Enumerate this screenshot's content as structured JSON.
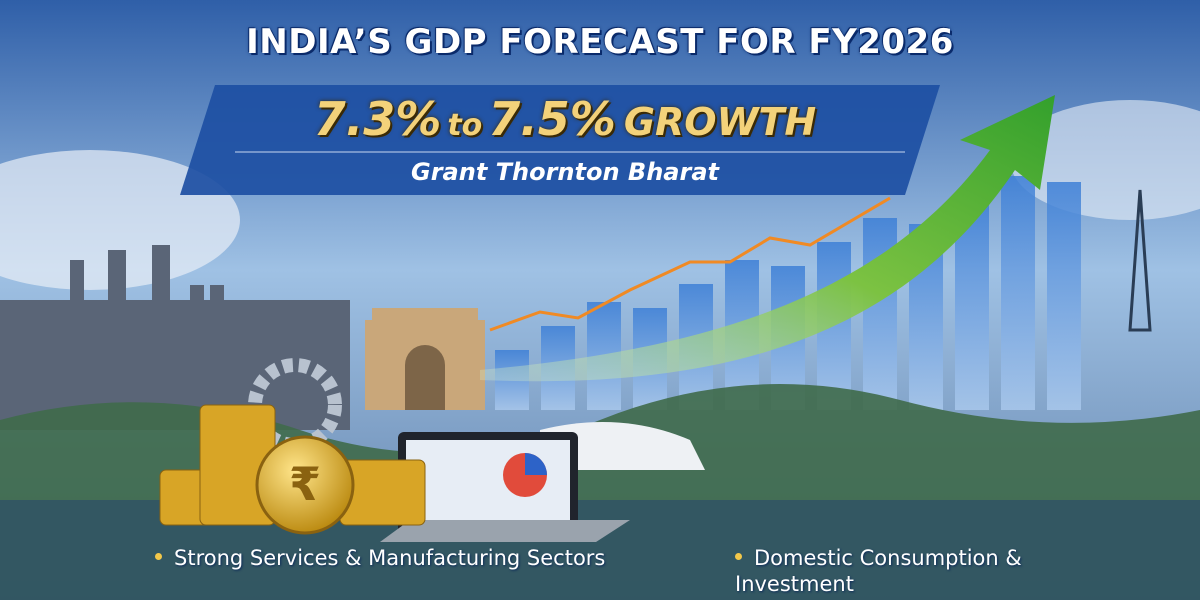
{
  "header": {
    "title": "INDIA’S GDP FORECAST FOR FY2026"
  },
  "banner": {
    "headline": [
      "7.3%",
      "to",
      "7.5%",
      "GROWTH"
    ],
    "source": "Grant Thornton Bharat"
  },
  "bullets": [
    "Strong Services & Manufacturing Sectors",
    "Domestic Consumption & Investment"
  ]
}
